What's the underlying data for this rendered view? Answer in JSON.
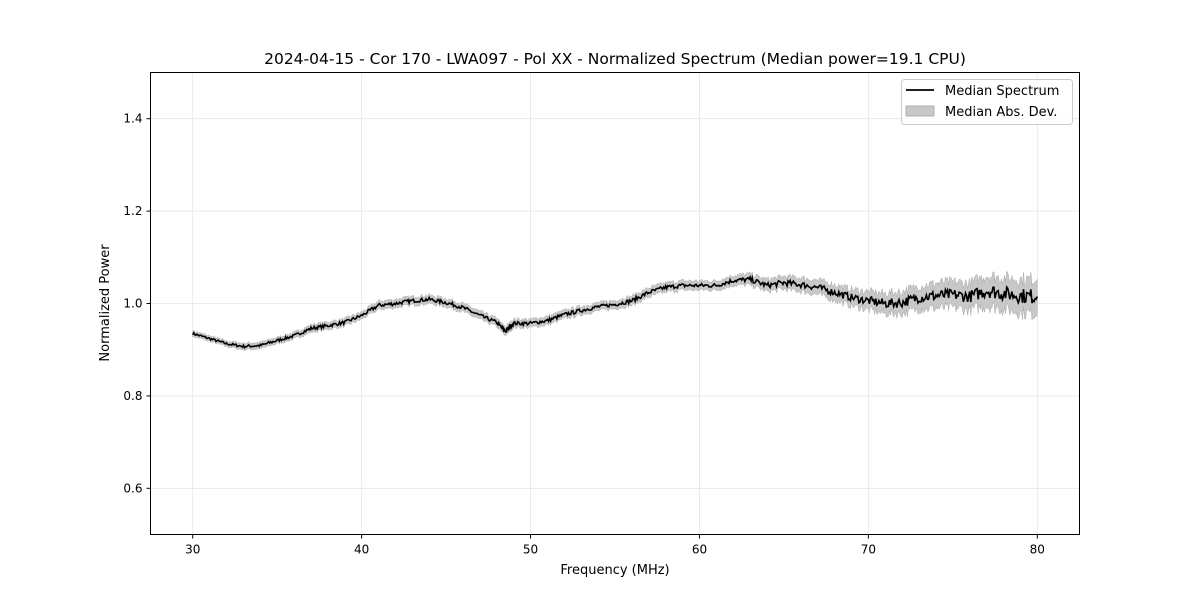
{
  "chart_data": {
    "type": "line",
    "title": "2024-04-15 - Cor 170 - LWA097 - Pol XX - Normalized Spectrum (Median power=19.1 CPU)",
    "xlabel": "Frequency (MHz)",
    "ylabel": "Normalized Power",
    "xlim": [
      27.5,
      82.5
    ],
    "ylim": [
      0.5,
      1.5
    ],
    "xticks": [
      30,
      40,
      50,
      60,
      70,
      80
    ],
    "yticks": [
      0.6,
      0.8,
      1.0,
      1.2,
      1.4
    ],
    "ytick_labels": [
      "0.6",
      "0.8",
      "1.0",
      "1.2",
      "1.4"
    ],
    "grid": true,
    "legend_position": "top-right",
    "legend": [
      "Median Spectrum",
      "Median Abs. Dev."
    ],
    "series": [
      {
        "name": "Median Spectrum",
        "color": "#000000",
        "x": [
          30,
          31,
          32,
          33,
          34,
          35,
          36,
          37,
          38,
          39,
          40,
          41,
          42,
          43,
          44,
          45,
          46,
          47,
          48,
          48.5,
          49,
          50,
          51,
          52,
          53,
          54,
          55,
          56,
          57,
          58,
          59,
          60,
          61,
          62,
          63,
          64,
          65,
          66,
          67,
          68,
          69,
          70,
          71,
          72,
          73,
          74,
          75,
          76,
          77,
          78,
          79,
          80
        ],
        "y": [
          0.935,
          0.924,
          0.913,
          0.907,
          0.909,
          0.92,
          0.93,
          0.946,
          0.952,
          0.959,
          0.974,
          0.996,
          1.0,
          1.006,
          1.009,
          1.002,
          0.991,
          0.974,
          0.959,
          0.94,
          0.957,
          0.957,
          0.963,
          0.976,
          0.985,
          0.993,
          0.998,
          1.006,
          1.024,
          1.035,
          1.039,
          1.039,
          1.039,
          1.05,
          1.052,
          1.039,
          1.045,
          1.041,
          1.035,
          1.024,
          1.013,
          1.006,
          1.0,
          1.002,
          1.013,
          1.017,
          1.019,
          1.015,
          1.028,
          1.022,
          1.017,
          1.015
        ]
      },
      {
        "name": "Median Abs. Dev.",
        "color": "#c8c8c8",
        "mad": [
          0.006,
          0.006,
          0.006,
          0.007,
          0.007,
          0.007,
          0.007,
          0.008,
          0.008,
          0.008,
          0.008,
          0.009,
          0.009,
          0.009,
          0.009,
          0.009,
          0.009,
          0.009,
          0.009,
          0.009,
          0.009,
          0.009,
          0.009,
          0.009,
          0.009,
          0.009,
          0.009,
          0.01,
          0.01,
          0.01,
          0.01,
          0.01,
          0.01,
          0.011,
          0.012,
          0.013,
          0.014,
          0.015,
          0.016,
          0.017,
          0.018,
          0.02,
          0.022,
          0.024,
          0.025,
          0.027,
          0.028,
          0.029,
          0.033,
          0.034,
          0.036,
          0.038
        ]
      }
    ]
  }
}
